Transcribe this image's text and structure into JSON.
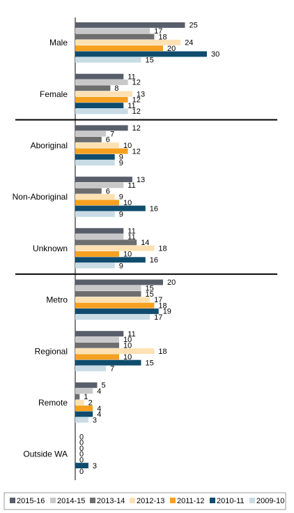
{
  "chart_data": {
    "type": "bar",
    "orientation": "horizontal",
    "categories": [
      "Male",
      "Female",
      "Aboriginal",
      "Non-Aboriginal",
      "Unknown",
      "Metro",
      "Regional",
      "Remote",
      "Outside WA"
    ],
    "series": [
      {
        "name": "2015-16",
        "color": "#595e6b",
        "values": [
          25,
          11,
          12,
          13,
          11,
          20,
          11,
          5,
          0
        ]
      },
      {
        "name": "2014-15",
        "color": "#c8c8c8",
        "values": [
          17,
          12,
          7,
          11,
          11,
          15,
          10,
          4,
          0
        ]
      },
      {
        "name": "2013-14",
        "color": "#6e6e6e",
        "values": [
          18,
          8,
          6,
          6,
          14,
          15,
          10,
          1,
          0
        ]
      },
      {
        "name": "2012-13",
        "color": "#fde1b3",
        "values": [
          24,
          13,
          10,
          9,
          18,
          17,
          18,
          2,
          0
        ]
      },
      {
        "name": "2011-12",
        "color": "#f5a020",
        "values": [
          20,
          12,
          12,
          10,
          10,
          18,
          10,
          4,
          0
        ]
      },
      {
        "name": "2010-11",
        "color": "#0f4c6e",
        "values": [
          30,
          11,
          9,
          16,
          16,
          19,
          15,
          4,
          3
        ]
      },
      {
        "name": "2009-10",
        "color": "#c9dce5",
        "values": [
          15,
          12,
          9,
          9,
          9,
          17,
          7,
          3,
          0
        ]
      }
    ],
    "xlim": [
      0,
      30
    ],
    "group_separators_after": [
      "Female",
      "Unknown"
    ],
    "legend_position": "bottom",
    "grid": false
  }
}
